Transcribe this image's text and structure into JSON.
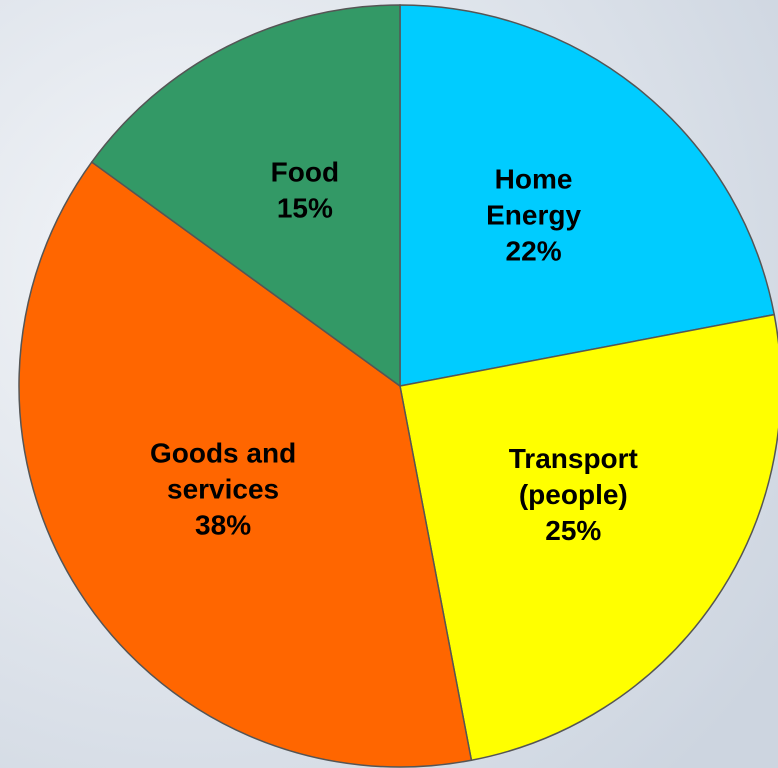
{
  "chart_data": {
    "type": "pie",
    "categories": [
      "Home\nEnergy",
      "Transport\n(people)",
      "Goods and\nservices",
      "Food"
    ],
    "values": [
      22,
      25,
      38,
      15
    ],
    "value_labels": [
      "22%",
      "25%",
      "38%",
      "15%"
    ],
    "colors": [
      "#00ccff",
      "#ffff00",
      "#ff6600",
      "#339966"
    ]
  }
}
